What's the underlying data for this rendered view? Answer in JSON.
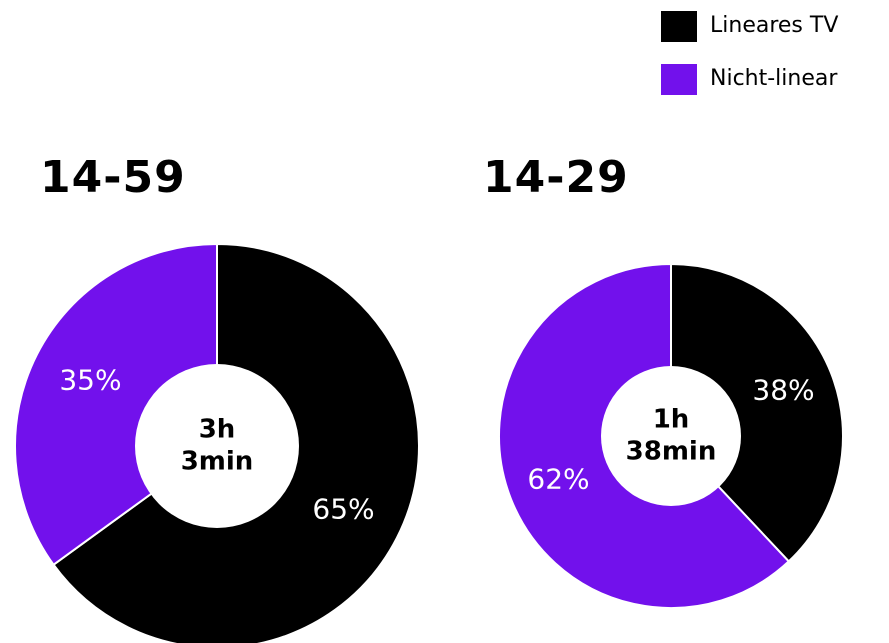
{
  "legend": [
    {
      "label": "Lineares TV",
      "color": "#000000"
    },
    {
      "label": "Nicht-linear",
      "color": "#7211ec"
    }
  ],
  "chart_data": [
    {
      "type": "pie",
      "title": "14-59",
      "center_label": [
        "3h",
        "3min"
      ],
      "slices": [
        {
          "name": "Lineares TV",
          "value": 65,
          "label": "65%",
          "color": "#000000"
        },
        {
          "name": "Nicht-linear",
          "value": 35,
          "label": "35%",
          "color": "#7211ec"
        }
      ]
    },
    {
      "type": "pie",
      "title": "14-29",
      "center_label": [
        "1h",
        "38min"
      ],
      "slices": [
        {
          "name": "Lineares TV",
          "value": 38,
          "label": "38%",
          "color": "#000000"
        },
        {
          "name": "Nicht-linear",
          "value": 62,
          "label": "62%",
          "color": "#7211ec"
        }
      ]
    }
  ]
}
